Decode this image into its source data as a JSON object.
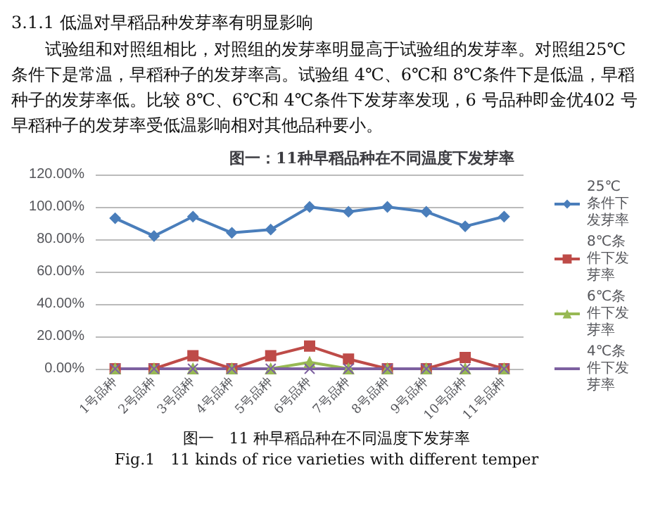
{
  "chart_data": {
    "type": "line",
    "title": "图一：11种早稻品种在不同温度下发芽率",
    "annotations": [
      "3.1.1 低温对早稻品种发芽率有明显影响",
      "试验组和对照组相比，对照组的发芽率明显高于试验组的发芽率。对照组25℃条件下是常温，早稻种子的发芽率高。试验组 4℃、6℃和 8℃条件下是低温，早稻种子的发芽率低。比较 8℃、6℃和 4℃条件下发芽率发现，6 号品种即金优402 号早稻种子的发芽率受低温影响相对其他品种要小。",
      "图一　11 种早稻品种在不同温度下发芽率",
      "Fig.1　11 kinds of rice varieties with different temper"
    ],
    "categories": [
      "1号品种",
      "2号品种",
      "3号品种",
      "4号品种",
      "5号品种",
      "6号品种",
      "7号品种",
      "8号品种",
      "9号品种",
      "10号品种",
      "11号品种"
    ],
    "series": [
      {
        "name": "25℃条件下发芽率",
        "color": "#4a7ebb",
        "marker": "diamond",
        "values": [
          93,
          82,
          94,
          84,
          86,
          100,
          97,
          100,
          97,
          88,
          94
        ]
      },
      {
        "name": "8℃条件下发芽率",
        "color": "#be4b48",
        "marker": "square",
        "values": [
          0,
          0,
          8,
          0,
          8,
          14,
          6,
          0,
          0,
          7,
          0
        ]
      },
      {
        "name": "6℃条件下发芽率",
        "color": "#98b954",
        "marker": "triangle",
        "values": [
          0,
          0,
          0,
          0,
          0,
          4,
          0,
          0,
          0,
          0,
          0
        ]
      },
      {
        "name": "4℃条件下发芽率",
        "color": "#7d60a0",
        "marker": "cross",
        "values": [
          0,
          0,
          0,
          0,
          0,
          0,
          0,
          0,
          0,
          0,
          0
        ]
      }
    ],
    "ylim": [
      0,
      120
    ],
    "yticks": [
      {
        "value": 0,
        "label": "0.00%"
      },
      {
        "value": 20,
        "label": "20.00%"
      },
      {
        "value": 40,
        "label": "40.00%"
      },
      {
        "value": 60,
        "label": "60.00%"
      },
      {
        "value": 80,
        "label": "80.00%"
      },
      {
        "value": 100,
        "label": "100.00%"
      },
      {
        "value": 120,
        "label": "120.00%"
      }
    ],
    "grid": "y",
    "legend": "right"
  }
}
